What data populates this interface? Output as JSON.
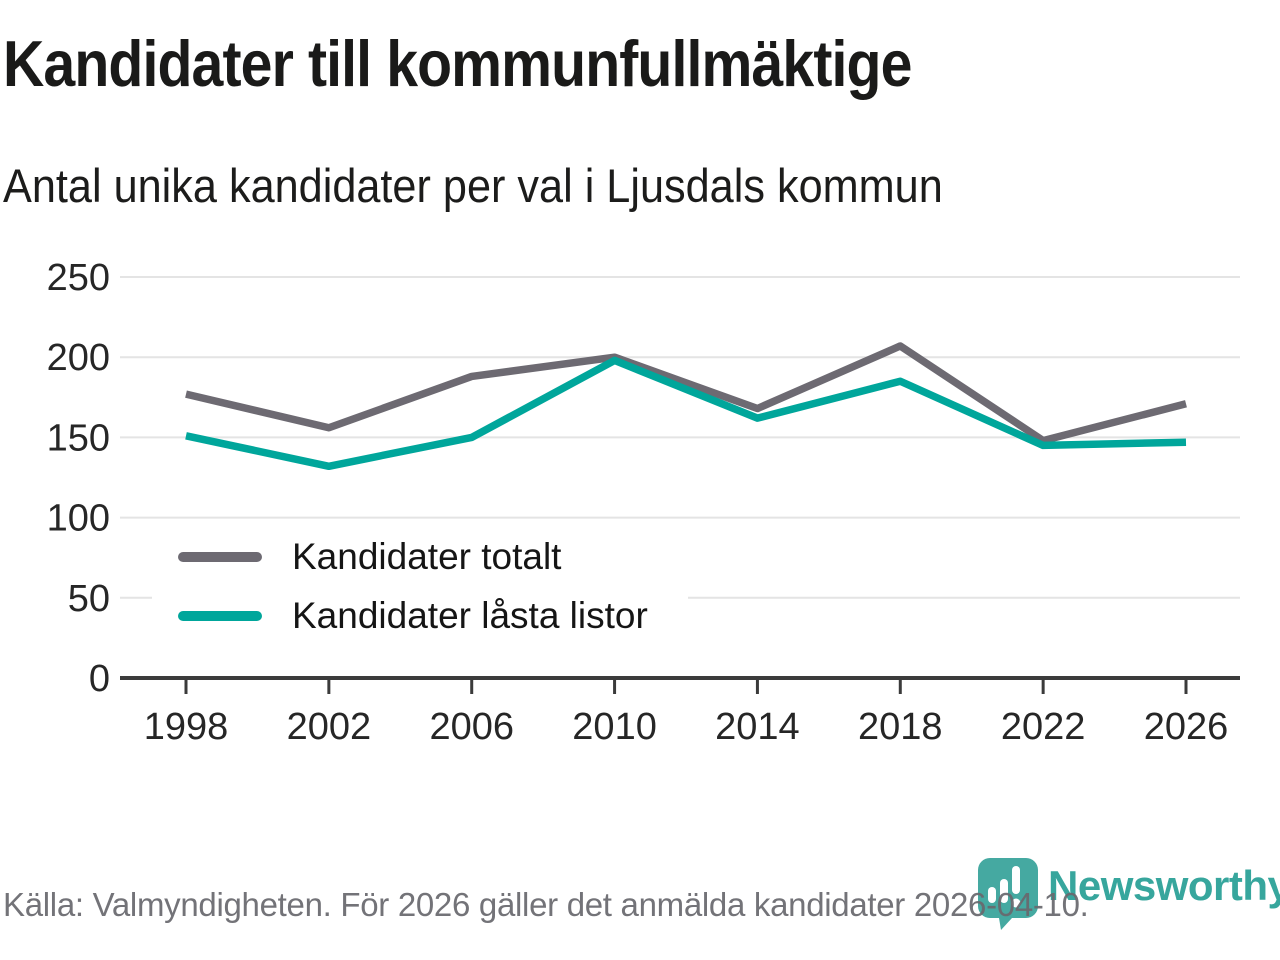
{
  "header": {
    "title": "Kandidater till kommunfullmäktige",
    "subtitle": "Antal unika kandidater per val i Ljusdals kommun"
  },
  "chart_data": {
    "type": "line",
    "title": "Kandidater till kommunfullmäktige",
    "subtitle": "Antal unika kandidater per val i Ljusdals kommun",
    "categories": [
      "1998",
      "2002",
      "2006",
      "2010",
      "2014",
      "2018",
      "2022",
      "2026"
    ],
    "series": [
      {
        "name": "Kandidater totalt",
        "color": "#6d6a72",
        "values": [
          177,
          156,
          188,
          200,
          168,
          207,
          148,
          171
        ]
      },
      {
        "name": "Kandidater låsta listor",
        "color": "#00a69b",
        "values": [
          151,
          132,
          150,
          198,
          162,
          185,
          145,
          147
        ]
      }
    ],
    "ylim": [
      0,
      250
    ],
    "yticks": [
      0,
      50,
      100,
      150,
      200,
      250
    ],
    "grid": true,
    "legend_position": "inside bottom-left"
  },
  "footer": {
    "source": "Källa: Valmyndigheten. För 2026 gäller det anmälda kandidater 2026-04-10.",
    "brand": "Newsworthy"
  },
  "colors": {
    "line_gray": "#6d6a72",
    "line_teal": "#00a69b",
    "grid": "#e4e4e4",
    "axis": "#3b3b3b",
    "logo_teal": "#45a9a1",
    "logo_text_teal": "#37a69d",
    "source_gray": "#68686e"
  }
}
